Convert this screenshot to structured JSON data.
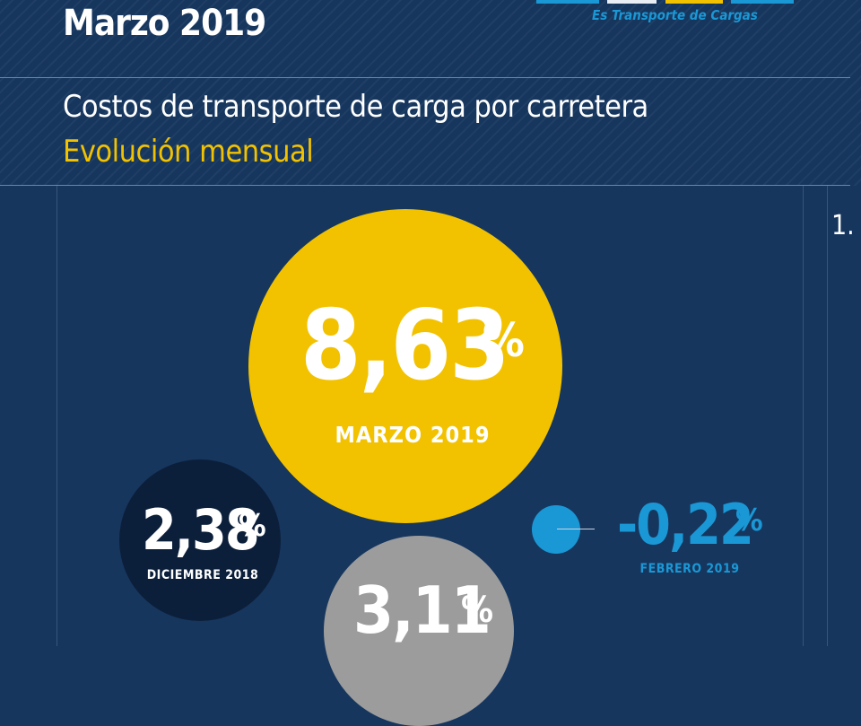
{
  "header": {
    "title": "Marzo 2019",
    "logo_tagline": "Es Transporte de Cargas",
    "subtitle": "Costos de transporte de carga por carretera",
    "subtitle_accent": "Evolución mensual",
    "page_marker": "1."
  },
  "colors": {
    "background": "#16365e",
    "accent_yellow": "#f2c200",
    "accent_blue": "#1a98d5",
    "dark_navy": "#0c1f3a",
    "grey": "#9c9c9c"
  },
  "indicators": {
    "marzo": {
      "value": "8,63",
      "unit": "%",
      "caption": "MARZO 2019"
    },
    "diciembre": {
      "value": "2,38",
      "unit": "%",
      "caption": "DICIEMBRE 2018"
    },
    "grey": {
      "value": "3,11",
      "unit": "%"
    },
    "febrero": {
      "value": "-0,22",
      "unit": "%",
      "caption": "FEBRERO 2019"
    }
  }
}
